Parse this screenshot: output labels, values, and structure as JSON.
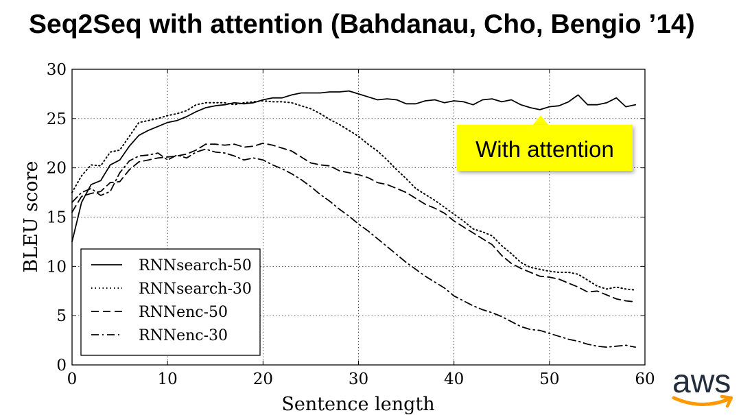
{
  "title": "Seq2Seq with attention (Bahdanau, Cho, Bengio ’14)",
  "callout": {
    "text": "With attention",
    "color": "#ffff00"
  },
  "brand": {
    "text": "aws",
    "text_color": "#222e3b",
    "smile_color": "#ff9900"
  },
  "chart_data": {
    "type": "line",
    "title": "",
    "xlabel": "Sentence length",
    "ylabel": "BLEU score",
    "xlim": [
      0,
      60
    ],
    "ylim": [
      0,
      30
    ],
    "xticks": [
      0,
      10,
      20,
      30,
      40,
      50,
      60
    ],
    "yticks": [
      0,
      5,
      10,
      15,
      20,
      25,
      30
    ],
    "grid": true,
    "legend_position": "bottom-left",
    "series": [
      {
        "name": "RNNsearch-50",
        "style": "solid",
        "x": [
          0,
          1,
          2,
          3,
          4,
          5,
          6,
          7,
          8,
          9,
          10,
          11,
          12,
          13,
          14,
          15,
          16,
          17,
          18,
          19,
          20,
          21,
          22,
          23,
          24,
          25,
          26,
          27,
          28,
          29,
          30,
          31,
          32,
          33,
          34,
          35,
          36,
          37,
          38,
          39,
          40,
          41,
          42,
          43,
          44,
          45,
          46,
          47,
          48,
          49,
          50,
          51,
          52,
          53,
          54,
          55,
          56,
          57,
          58,
          59
        ],
        "y": [
          12.5,
          16.5,
          18.3,
          18.7,
          20.3,
          20.8,
          22.2,
          23.3,
          23.8,
          24.2,
          24.6,
          24.8,
          25.2,
          25.7,
          26.1,
          26.3,
          26.4,
          26.6,
          26.5,
          26.6,
          26.9,
          27.1,
          27.1,
          27.4,
          27.6,
          27.6,
          27.6,
          27.7,
          27.7,
          27.8,
          27.5,
          27.2,
          26.9,
          27.0,
          26.9,
          26.5,
          26.5,
          26.8,
          26.9,
          26.6,
          26.8,
          26.7,
          26.4,
          26.9,
          27.0,
          26.7,
          26.9,
          26.4,
          26.1,
          25.9,
          26.2,
          26.3,
          26.7,
          27.4,
          26.4,
          26.4,
          26.6,
          27.1,
          26.2,
          26.4
        ]
      },
      {
        "name": "RNNsearch-30",
        "style": "dotted",
        "x": [
          0,
          1,
          2,
          3,
          4,
          5,
          6,
          7,
          8,
          9,
          10,
          11,
          12,
          13,
          14,
          15,
          16,
          17,
          18,
          19,
          20,
          21,
          22,
          23,
          24,
          25,
          26,
          27,
          28,
          29,
          30,
          31,
          32,
          33,
          34,
          35,
          36,
          37,
          38,
          39,
          40,
          41,
          42,
          43,
          44,
          45,
          46,
          47,
          48,
          49,
          50,
          51,
          52,
          53,
          54,
          55,
          56,
          57,
          58,
          59
        ],
        "y": [
          17.5,
          19.2,
          20.3,
          20.2,
          21.6,
          21.8,
          23.2,
          24.6,
          24.8,
          25.0,
          25.3,
          25.5,
          25.8,
          26.4,
          26.6,
          26.6,
          26.6,
          26.4,
          26.6,
          26.7,
          26.8,
          26.7,
          26.7,
          26.6,
          26.3,
          26.0,
          25.5,
          24.9,
          24.4,
          23.8,
          23.2,
          22.4,
          21.7,
          20.8,
          19.8,
          18.9,
          17.9,
          17.3,
          16.7,
          16.0,
          15.3,
          14.6,
          13.8,
          13.5,
          13.1,
          12.1,
          11.3,
          10.4,
          9.9,
          9.7,
          9.5,
          9.4,
          9.4,
          9.2,
          8.6,
          8.0,
          7.7,
          7.9,
          7.7,
          7.6
        ]
      },
      {
        "name": "RNNenc-50",
        "style": "dashed",
        "x": [
          0,
          1,
          2,
          3,
          4,
          5,
          6,
          7,
          8,
          9,
          10,
          11,
          12,
          13,
          14,
          15,
          16,
          17,
          18,
          19,
          20,
          21,
          22,
          23,
          24,
          25,
          26,
          27,
          28,
          29,
          30,
          31,
          32,
          33,
          34,
          35,
          36,
          37,
          38,
          39,
          40,
          41,
          42,
          43,
          44,
          45,
          46,
          47,
          48,
          49,
          50,
          51,
          52,
          53,
          54,
          55,
          56,
          57,
          58,
          59
        ],
        "y": [
          15.5,
          17.1,
          17.4,
          17.6,
          18.5,
          18.6,
          19.8,
          20.6,
          20.8,
          21.0,
          21.1,
          21.2,
          21.4,
          21.8,
          22.4,
          22.4,
          22.3,
          22.4,
          22.1,
          22.2,
          22.5,
          22.3,
          22.0,
          21.7,
          21.1,
          20.5,
          20.3,
          20.2,
          19.7,
          19.5,
          19.3,
          19.0,
          18.5,
          18.3,
          17.9,
          17.5,
          16.9,
          16.3,
          15.9,
          15.4,
          14.6,
          14.0,
          13.4,
          12.8,
          12.2,
          11.1,
          10.3,
          9.8,
          9.4,
          9.0,
          8.9,
          8.7,
          8.3,
          7.9,
          7.4,
          7.5,
          7.1,
          6.7,
          6.5,
          6.4
        ]
      },
      {
        "name": "RNNenc-30",
        "style": "dashdot",
        "x": [
          0,
          1,
          2,
          3,
          4,
          5,
          6,
          7,
          8,
          9,
          10,
          11,
          12,
          13,
          14,
          15,
          16,
          17,
          18,
          19,
          20,
          21,
          22,
          23,
          24,
          25,
          26,
          27,
          28,
          29,
          30,
          31,
          32,
          33,
          34,
          35,
          36,
          37,
          38,
          39,
          40,
          41,
          42,
          43,
          44,
          45,
          46,
          47,
          48,
          49,
          50,
          51,
          52,
          53,
          54,
          55,
          56,
          57,
          58,
          59
        ],
        "y": [
          16.5,
          17.5,
          17.9,
          17.2,
          17.6,
          19.5,
          20.7,
          21.2,
          21.3,
          21.5,
          20.8,
          21.3,
          21.0,
          21.6,
          21.9,
          21.6,
          21.5,
          21.2,
          20.8,
          21.0,
          20.8,
          20.3,
          19.9,
          19.4,
          18.8,
          18.1,
          17.3,
          16.6,
          15.8,
          15.1,
          14.3,
          13.6,
          12.8,
          12.0,
          11.2,
          10.4,
          9.7,
          9.0,
          8.4,
          7.8,
          7.0,
          6.5,
          6.0,
          5.6,
          5.3,
          4.9,
          4.4,
          3.9,
          3.6,
          3.5,
          3.2,
          2.9,
          2.6,
          2.4,
          2.1,
          1.9,
          1.8,
          1.9,
          2.0,
          1.8
        ]
      }
    ]
  }
}
